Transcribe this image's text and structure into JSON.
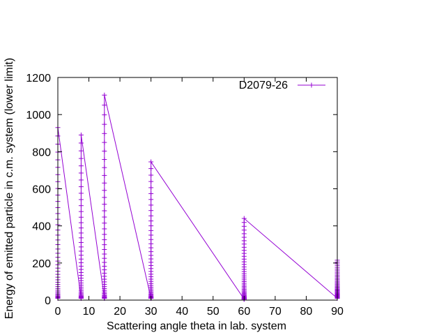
{
  "chart_data": {
    "type": "line",
    "title": "",
    "xlabel": "Scattering angle theta in lab. system",
    "ylabel": "Energy of emitted particle in c.m. system (lower limit)",
    "xlim": [
      0,
      90
    ],
    "ylim": [
      0,
      1200
    ],
    "x_ticks": [
      0,
      10,
      20,
      30,
      40,
      50,
      60,
      70,
      80,
      90
    ],
    "y_ticks": [
      0,
      200,
      400,
      600,
      800,
      1000,
      1200
    ],
    "x_tick_labels": [
      "0",
      "10",
      "20",
      "30",
      "40",
      "50",
      "60",
      "70",
      "80",
      "90"
    ],
    "y_tick_labels": [
      "0",
      "200",
      "400",
      "600",
      "800",
      "1000",
      "1200"
    ],
    "grid": false,
    "legend_position": "top-right",
    "marker": "plus",
    "series": [
      {
        "name": "D2079-26",
        "color": "#9400d3",
        "angles": [
          0,
          7.5,
          15,
          30,
          60,
          90
        ],
        "max_energy": [
          930,
          890,
          1105,
          745,
          440,
          215
        ],
        "min_energy": [
          10,
          10,
          10,
          10,
          5,
          10
        ],
        "points_per_angle": 45
      }
    ]
  }
}
